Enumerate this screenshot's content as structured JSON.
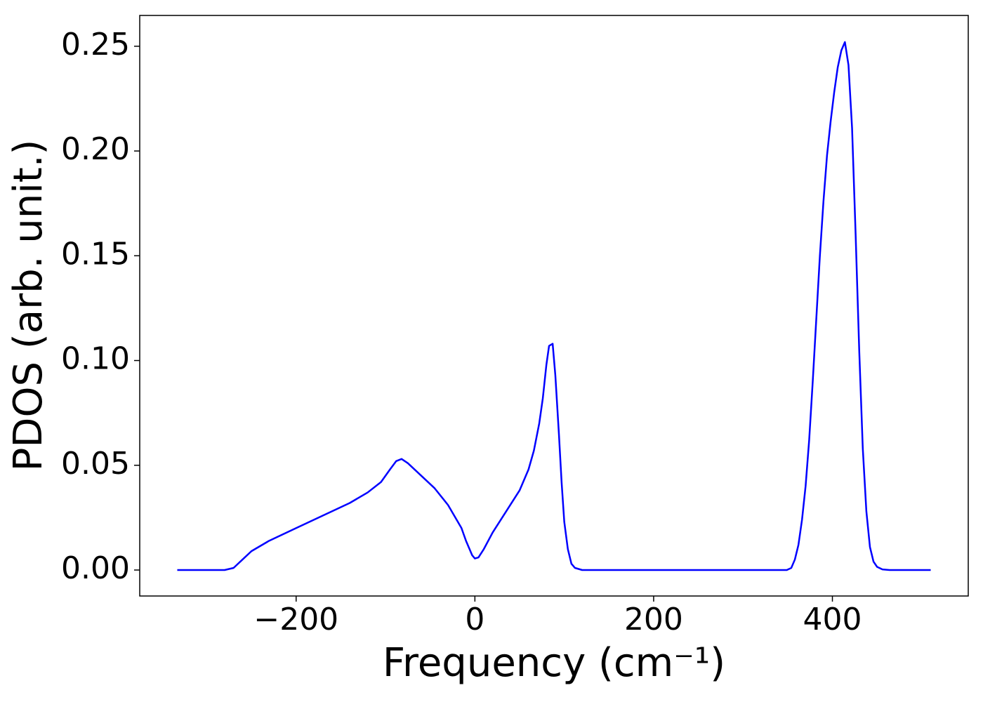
{
  "chart_data": {
    "type": "line",
    "xlabel": "Frequency (cm⁻¹)",
    "ylabel": "PDOS (arb. unit.)",
    "x": [
      -333,
      -280,
      -270,
      -260,
      -250,
      -230,
      -200,
      -170,
      -140,
      -120,
      -105,
      -95,
      -88,
      -82,
      -75,
      -60,
      -45,
      -30,
      -15,
      -10,
      -3,
      0,
      4,
      10,
      20,
      35,
      50,
      60,
      66,
      72,
      76,
      80,
      83,
      87,
      90,
      94,
      97,
      100,
      104,
      108,
      112,
      120,
      340,
      349,
      354,
      358,
      362,
      366,
      370,
      374,
      378,
      382,
      386,
      390,
      394,
      398,
      402,
      406,
      410,
      414,
      418,
      422,
      426,
      430,
      434,
      438,
      442,
      446,
      450,
      456,
      464,
      510
    ],
    "series": [
      {
        "name": "PDOS",
        "color": "#0000ff",
        "values": [
          0,
          0,
          0.001,
          0.005,
          0.009,
          0.014,
          0.02,
          0.026,
          0.032,
          0.037,
          0.042,
          0.048,
          0.052,
          0.053,
          0.051,
          0.045,
          0.039,
          0.031,
          0.02,
          0.014,
          0.007,
          0.0055,
          0.006,
          0.01,
          0.018,
          0.028,
          0.038,
          0.048,
          0.057,
          0.07,
          0.082,
          0.098,
          0.107,
          0.108,
          0.093,
          0.065,
          0.042,
          0.023,
          0.01,
          0.003,
          0.001,
          0,
          0,
          0,
          0.001,
          0.005,
          0.012,
          0.024,
          0.04,
          0.062,
          0.09,
          0.12,
          0.15,
          0.176,
          0.198,
          0.214,
          0.228,
          0.24,
          0.248,
          0.252,
          0.241,
          0.211,
          0.16,
          0.105,
          0.058,
          0.028,
          0.011,
          0.004,
          0.0015,
          0.0003,
          0,
          0
        ]
      }
    ],
    "xlim": [
      -375,
      552
    ],
    "ylim": [
      -0.0124,
      0.2647
    ],
    "xticks": [
      {
        "value": -200,
        "label": "−200"
      },
      0,
      200,
      400
    ],
    "yticks": [
      {
        "value": 0,
        "label": "0.00"
      },
      {
        "value": 0.05,
        "label": "0.05"
      },
      {
        "value": 0.1,
        "label": "0.10"
      },
      {
        "value": 0.15,
        "label": "0.15"
      },
      {
        "value": 0.2,
        "label": "0.20"
      },
      {
        "value": 0.25,
        "label": "0.25"
      }
    ],
    "grid": false
  }
}
